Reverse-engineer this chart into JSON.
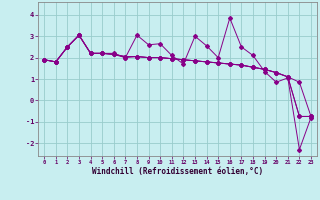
{
  "xlabel": "Windchill (Refroidissement éolien,°C)",
  "background_color": "#c8eef0",
  "line_color": "#880088",
  "grid_color": "#99cccc",
  "xlim": [
    -0.5,
    23.5
  ],
  "ylim": [
    -2.6,
    4.6
  ],
  "yticks": [
    -2,
    -1,
    0,
    1,
    2,
    3,
    4
  ],
  "xticks": [
    0,
    1,
    2,
    3,
    4,
    5,
    6,
    7,
    8,
    9,
    10,
    11,
    12,
    13,
    14,
    15,
    16,
    17,
    18,
    19,
    20,
    21,
    22,
    23
  ],
  "series1_x": [
    0,
    1,
    2,
    3,
    4,
    5,
    6,
    7,
    8,
    9,
    10,
    11,
    12,
    13,
    14,
    15,
    16,
    17,
    18,
    19,
    20,
    21,
    22,
    23
  ],
  "series1_y": [
    1.9,
    1.8,
    2.5,
    3.05,
    2.2,
    2.2,
    2.15,
    2.05,
    2.05,
    2.0,
    2.0,
    1.95,
    1.9,
    1.85,
    1.8,
    1.75,
    1.7,
    1.65,
    1.55,
    1.45,
    1.3,
    1.1,
    0.85,
    -0.75
  ],
  "series2_x": [
    0,
    1,
    2,
    3,
    4,
    5,
    6,
    7,
    8,
    9,
    10,
    11,
    12,
    13,
    14,
    15,
    16,
    17,
    18,
    19,
    20,
    21,
    22,
    23
  ],
  "series2_y": [
    1.9,
    1.8,
    2.5,
    3.05,
    2.2,
    2.2,
    2.2,
    2.0,
    3.05,
    2.6,
    2.65,
    2.1,
    1.7,
    3.0,
    2.55,
    2.0,
    3.85,
    2.5,
    2.1,
    1.35,
    0.85,
    1.05,
    -2.3,
    -0.8
  ],
  "series3_x": [
    0,
    1,
    2,
    3,
    4,
    5,
    6,
    7,
    8,
    9,
    10,
    11,
    12,
    13,
    14,
    15,
    16,
    17,
    18,
    19,
    20,
    21,
    22,
    23
  ],
  "series3_y": [
    1.9,
    1.8,
    2.5,
    3.05,
    2.2,
    2.2,
    2.15,
    2.0,
    2.05,
    2.0,
    2.0,
    1.95,
    1.9,
    1.85,
    1.8,
    1.75,
    1.7,
    1.65,
    1.55,
    1.45,
    1.3,
    1.1,
    -0.75,
    -0.75
  ],
  "series4_x": [
    0,
    1,
    2,
    3,
    4,
    5,
    6,
    7,
    8,
    9,
    10,
    11,
    12,
    13,
    14,
    15,
    16,
    17,
    18,
    19,
    20,
    21,
    22,
    23
  ],
  "series4_y": [
    1.9,
    1.8,
    2.5,
    3.05,
    2.2,
    2.2,
    2.15,
    2.05,
    2.05,
    2.0,
    2.0,
    1.95,
    1.9,
    1.85,
    1.8,
    1.75,
    1.7,
    1.65,
    1.55,
    1.45,
    1.3,
    1.1,
    -0.75,
    -0.75
  ]
}
